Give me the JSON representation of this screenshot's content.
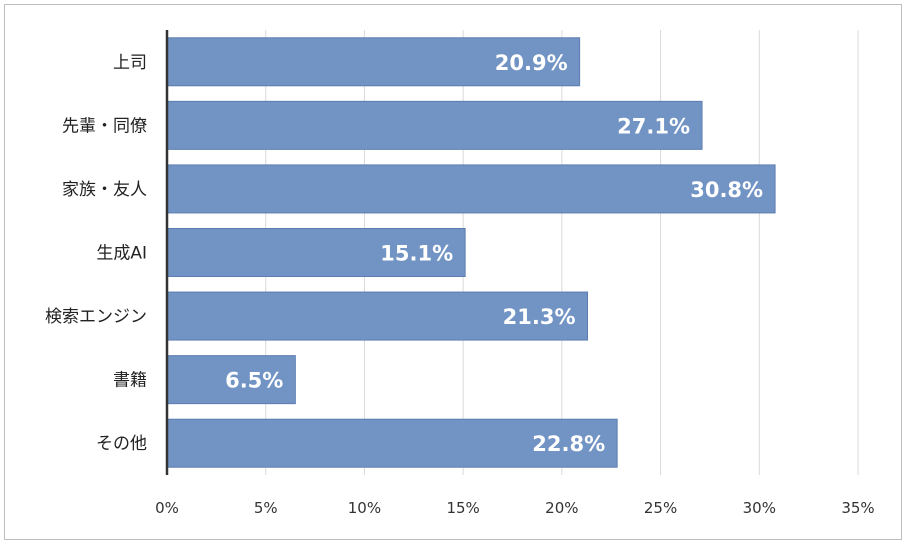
{
  "chart_data": {
    "type": "bar",
    "orientation": "horizontal",
    "categories": [
      "上司",
      "先輩・同僚",
      "家族・友人",
      "生成AI",
      "検索エンジン",
      "書籍",
      "その他"
    ],
    "values": [
      20.9,
      27.1,
      30.8,
      15.1,
      21.3,
      6.5,
      22.8
    ],
    "data_labels": [
      "20.9%",
      "27.1%",
      "30.8%",
      "15.1%",
      "21.3%",
      "6.5%",
      "22.8%"
    ],
    "xlim": [
      0,
      35
    ],
    "xticks": [
      0,
      5,
      10,
      15,
      20,
      25,
      30,
      35
    ],
    "xtick_labels": [
      "0%",
      "5%",
      "10%",
      "15%",
      "20%",
      "25%",
      "30%",
      "35%"
    ],
    "grid": "vertical",
    "legend": "none",
    "bar_color": "#7294c4",
    "bar_edge_color": "#5b7db0",
    "axis_color": "#333333",
    "grid_color": "#d9d9d9"
  }
}
